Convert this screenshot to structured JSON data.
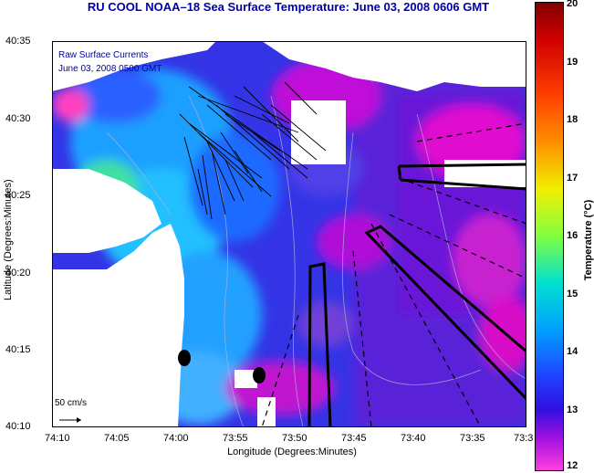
{
  "title": "RU COOL   NOAA–18  Sea Surface Temperature:  June 03, 2008 0606 GMT",
  "legend": {
    "line1": "Raw Surface Currents",
    "line2": "June 03, 2008 0500 GMT"
  },
  "scale_label": "50 cm/s",
  "axes": {
    "xlabel": "Longitude (Degrees:Minutes)",
    "ylabel": "Latitude (Degrees:Minutes)",
    "xticks": [
      "74:10",
      "74:05",
      "74:00",
      "73:55",
      "73:50",
      "73:45",
      "73:40",
      "73:35",
      "73:3"
    ],
    "yticks": [
      "40:35",
      "40:30",
      "40:25",
      "40:20",
      "40:15",
      "40:10"
    ]
  },
  "colorbar": {
    "label": "Temperature (°C)",
    "ticks": [
      "20",
      "19",
      "18",
      "17",
      "16",
      "15",
      "14",
      "13",
      "12"
    ],
    "min": 12,
    "max": 20
  },
  "colors": {
    "title": "#0000a8",
    "land": "#ffffff",
    "water_base": "#3030e0"
  }
}
